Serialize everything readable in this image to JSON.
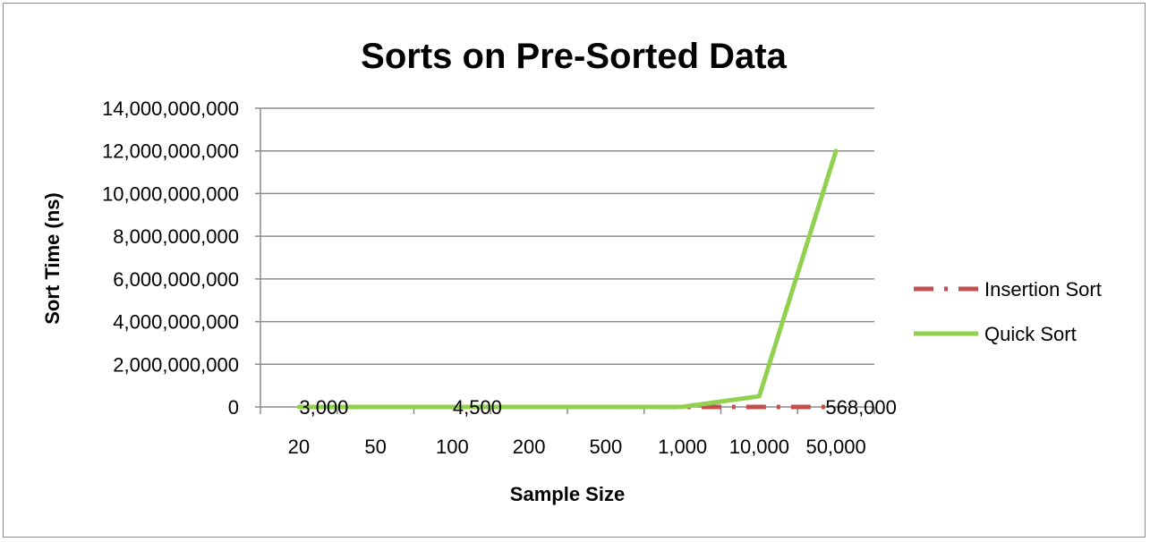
{
  "chart_data": {
    "type": "line",
    "title": "Sorts on Pre-Sorted Data",
    "xlabel": "Sample Size",
    "ylabel": "Sort Time (ns)",
    "categories": [
      "20",
      "50",
      "100",
      "200",
      "500",
      "1,000",
      "10,000",
      "50,000"
    ],
    "y_ticks": [
      "0",
      "2,000,000,000",
      "4,000,000,000",
      "6,000,000,000",
      "8,000,000,000",
      "10,000,000,000",
      "12,000,000,000",
      "14,000,000,000"
    ],
    "ylim": [
      0,
      14000000000
    ],
    "grid": true,
    "legend_position": "right",
    "series": [
      {
        "name": "Insertion Sort",
        "color": "#c0504d",
        "dash": "dash-dot",
        "values": [
          3000,
          3500,
          4500,
          6000,
          15000,
          30000,
          300000,
          568000
        ]
      },
      {
        "name": "Quick Sort",
        "color": "#92d050",
        "dash": "solid",
        "values": [
          5000,
          12000,
          30000,
          100000,
          1000000,
          5000000,
          500000000,
          12000000000
        ]
      }
    ],
    "data_labels": [
      {
        "series": 0,
        "index": 0,
        "text": "3,000"
      },
      {
        "series": 0,
        "index": 2,
        "text": "4,500"
      },
      {
        "series": 0,
        "index": 7,
        "text": "568,000"
      }
    ]
  }
}
